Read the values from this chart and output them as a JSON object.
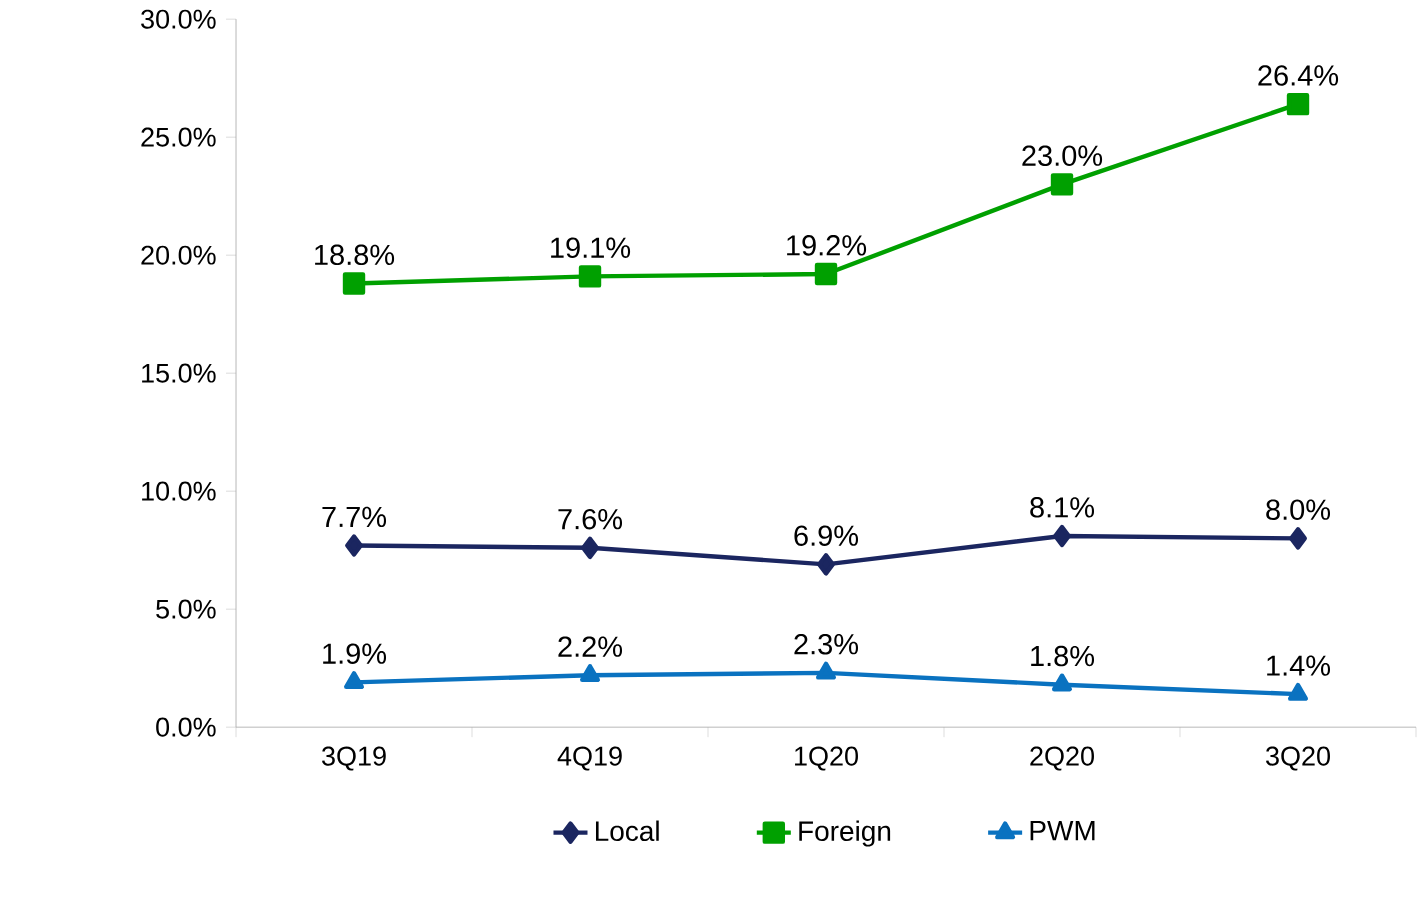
{
  "chart_data": {
    "type": "line",
    "categories": [
      "3Q19",
      "4Q19",
      "1Q20",
      "2Q20",
      "3Q20"
    ],
    "series": [
      {
        "name": "Local",
        "color": "#1b2660",
        "marker": "diamond",
        "values": [
          7.7,
          7.6,
          6.9,
          8.1,
          8.0
        ],
        "value_labels": [
          "7.7%",
          "7.6%",
          "6.9%",
          "8.1%",
          "8.0%"
        ]
      },
      {
        "name": "Foreign",
        "color": "#00a000",
        "marker": "square",
        "values": [
          18.8,
          19.1,
          19.2,
          23.0,
          26.4
        ],
        "value_labels": [
          "18.8%",
          "19.1%",
          "19.2%",
          "23.0%",
          "26.4%"
        ]
      },
      {
        "name": "PWM",
        "color": "#0a72c0",
        "marker": "triangle",
        "values": [
          1.9,
          2.2,
          2.3,
          1.8,
          1.4
        ],
        "value_labels": [
          "1.9%",
          "2.2%",
          "2.3%",
          "1.8%",
          "1.4%"
        ]
      }
    ],
    "ylim": [
      0,
      30
    ],
    "yticks": [
      {
        "value": 0,
        "label": "0.0%"
      },
      {
        "value": 5,
        "label": "5.0%"
      },
      {
        "value": 10,
        "label": "10.0%"
      },
      {
        "value": 15,
        "label": "15.0%"
      },
      {
        "value": 20,
        "label": "20.0%"
      },
      {
        "value": 25,
        "label": "25.0%"
      },
      {
        "value": 30,
        "label": "30.0%"
      }
    ],
    "grid": false,
    "legend": "bottom"
  }
}
